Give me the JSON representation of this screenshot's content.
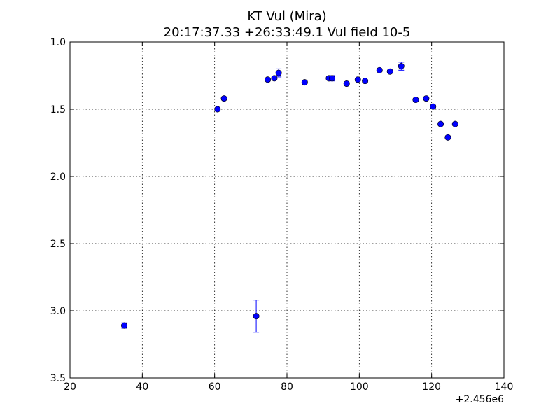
{
  "chart_data": {
    "type": "scatter",
    "title": "KT Vul (Mira)",
    "subtitle": "20:17:37.33 +26:33:49.1 Vul field 10-5",
    "xlabel": "",
    "ylabel": "",
    "x_offset_label": "+2.456e6",
    "xlim": [
      20,
      140
    ],
    "ylim": [
      1.0,
      3.5
    ],
    "y_inverted": true,
    "x_ticks": [
      20,
      40,
      60,
      80,
      100,
      120,
      140
    ],
    "y_ticks": [
      1.0,
      1.5,
      2.0,
      2.5,
      3.0,
      3.5
    ],
    "grid": true,
    "colors": {
      "marker": "#0000ff",
      "errorbar": "#0000ff"
    },
    "points": [
      {
        "x": 35.0,
        "y": 3.11,
        "err": 0.02
      },
      {
        "x": 60.8,
        "y": 1.5,
        "err": 0.01
      },
      {
        "x": 62.6,
        "y": 1.42,
        "err": 0.01
      },
      {
        "x": 71.5,
        "y": 3.04,
        "err": 0.12
      },
      {
        "x": 74.7,
        "y": 1.28,
        "err": 0.01
      },
      {
        "x": 76.5,
        "y": 1.27,
        "err": 0.01
      },
      {
        "x": 77.7,
        "y": 1.23,
        "err": 0.03
      },
      {
        "x": 84.9,
        "y": 1.3,
        "err": 0.01
      },
      {
        "x": 91.6,
        "y": 1.27,
        "err": 0.01
      },
      {
        "x": 92.5,
        "y": 1.27,
        "err": 0.02
      },
      {
        "x": 96.5,
        "y": 1.31,
        "err": 0.01
      },
      {
        "x": 99.6,
        "y": 1.28,
        "err": 0.01
      },
      {
        "x": 101.6,
        "y": 1.29,
        "err": 0.01
      },
      {
        "x": 105.6,
        "y": 1.21,
        "err": 0.01
      },
      {
        "x": 108.5,
        "y": 1.22,
        "err": 0.01
      },
      {
        "x": 111.6,
        "y": 1.18,
        "err": 0.03
      },
      {
        "x": 115.6,
        "y": 1.43,
        "err": 0.01
      },
      {
        "x": 118.5,
        "y": 1.42,
        "err": 0.01
      },
      {
        "x": 120.4,
        "y": 1.48,
        "err": 0.01
      },
      {
        "x": 122.5,
        "y": 1.61,
        "err": 0.01
      },
      {
        "x": 124.5,
        "y": 1.71,
        "err": 0.01
      },
      {
        "x": 126.5,
        "y": 1.61,
        "err": 0.01
      }
    ]
  }
}
